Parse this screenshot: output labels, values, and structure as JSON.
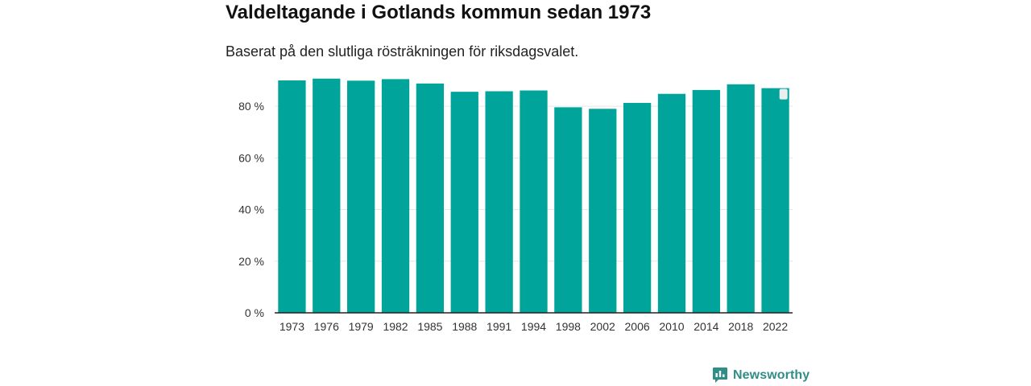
{
  "title": "Valdeltagande i Gotlands kommun sedan 1973",
  "subtitle": "Baserat på den slutliga rösträkningen för riksdagsvalet.",
  "brand": {
    "name": "Newsworthy",
    "icon": "newsworthy-logo-icon",
    "color": "#2f8f86"
  },
  "colors": {
    "bar": "#00a49a",
    "grid": "#e6e6e6",
    "axis": "#222222",
    "tick_text": "#333333"
  },
  "chart_data": {
    "type": "bar",
    "title": "Valdeltagande i Gotlands kommun sedan 1973",
    "xlabel": "",
    "ylabel": "",
    "ylim": [
      0,
      90
    ],
    "yticks": [
      0,
      20,
      40,
      60,
      80
    ],
    "ytick_labels": [
      "0 %",
      "20 %",
      "40 %",
      "60 %",
      "80 %"
    ],
    "grid": true,
    "categories": [
      "1973",
      "1976",
      "1979",
      "1982",
      "1985",
      "1988",
      "1991",
      "1994",
      "1998",
      "2002",
      "2006",
      "2010",
      "2014",
      "2018",
      "2022"
    ],
    "values": [
      90.0,
      90.7,
      89.9,
      90.5,
      88.8,
      85.6,
      85.8,
      86.1,
      79.6,
      79.0,
      81.3,
      84.8,
      86.3,
      88.5,
      87.0
    ]
  }
}
